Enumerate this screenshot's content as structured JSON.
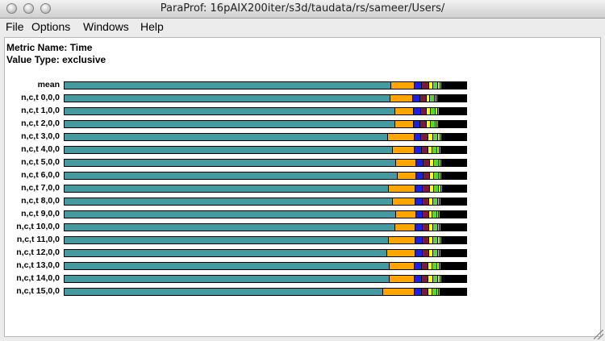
{
  "window": {
    "title": "ParaProf: 16pAIX200iter/s3d/taudata/rs/sameer/Users/"
  },
  "menu": [
    "File",
    "Options",
    "Windows",
    "Help"
  ],
  "header": {
    "metric": "Metric Name: Time",
    "value_type": "Value Type: exclusive"
  },
  "colors": {
    "teal": "#4a97a1",
    "orange": "#ffa500",
    "blue": "#1c22d8",
    "maroon": "#7a1b36",
    "yellow": "#ffff00",
    "green": "#5ad43a",
    "lime": "#b8ff00",
    "gray": "#9a9a9a",
    "black": "#000000"
  },
  "chart_data": {
    "type": "bar",
    "stacked": true,
    "orientation": "horizontal",
    "segment_colors": [
      "#4a97a1",
      "#ffa500",
      "#1c22d8",
      "#7a1b36",
      "#ffff00",
      "#5ad43a",
      "#b8ff00",
      "#9a9a9a",
      "#000000"
    ],
    "categories": [
      "mean",
      "n,c,t 0,0,0",
      "n,c,t 1,0,0",
      "n,c,t 2,0,0",
      "n,c,t 3,0,0",
      "n,c,t 4,0,0",
      "n,c,t 5,0,0",
      "n,c,t 6,0,0",
      "n,c,t 7,0,0",
      "n,c,t 8,0,0",
      "n,c,t 9,0,0",
      "n,c,t 10,0,0",
      "n,c,t 11,0,0",
      "n,c,t 12,0,0",
      "n,c,t 13,0,0",
      "n,c,t 14,0,0",
      "n,c,t 15,0,0"
    ],
    "rows": [
      [
        0.814,
        0.058,
        0.018,
        0.018,
        0.01,
        0.012,
        0.006,
        0.004,
        0.06
      ],
      [
        0.812,
        0.056,
        0.018,
        0.016,
        0.008,
        0.012,
        0.004,
        0.004,
        0.07
      ],
      [
        0.824,
        0.046,
        0.018,
        0.014,
        0.01,
        0.012,
        0.006,
        0.004,
        0.066
      ],
      [
        0.824,
        0.046,
        0.016,
        0.016,
        0.01,
        0.012,
        0.004,
        0.004,
        0.068
      ],
      [
        0.806,
        0.066,
        0.016,
        0.018,
        0.012,
        0.012,
        0.006,
        0.004,
        0.06
      ],
      [
        0.818,
        0.054,
        0.018,
        0.016,
        0.01,
        0.012,
        0.006,
        0.004,
        0.062
      ],
      [
        0.826,
        0.05,
        0.018,
        0.016,
        0.01,
        0.012,
        0.004,
        0.004,
        0.06
      ],
      [
        0.83,
        0.046,
        0.018,
        0.016,
        0.01,
        0.012,
        0.004,
        0.004,
        0.06
      ],
      [
        0.808,
        0.066,
        0.018,
        0.018,
        0.01,
        0.012,
        0.006,
        0.004,
        0.058
      ],
      [
        0.818,
        0.056,
        0.018,
        0.016,
        0.01,
        0.012,
        0.004,
        0.004,
        0.062
      ],
      [
        0.826,
        0.05,
        0.016,
        0.016,
        0.008,
        0.012,
        0.004,
        0.004,
        0.064
      ],
      [
        0.824,
        0.05,
        0.018,
        0.016,
        0.01,
        0.012,
        0.004,
        0.004,
        0.062
      ],
      [
        0.808,
        0.066,
        0.018,
        0.016,
        0.01,
        0.012,
        0.006,
        0.004,
        0.06
      ],
      [
        0.804,
        0.07,
        0.018,
        0.016,
        0.01,
        0.012,
        0.004,
        0.004,
        0.062
      ],
      [
        0.81,
        0.062,
        0.018,
        0.016,
        0.01,
        0.012,
        0.006,
        0.004,
        0.062
      ],
      [
        0.81,
        0.062,
        0.018,
        0.016,
        0.012,
        0.012,
        0.006,
        0.004,
        0.06
      ],
      [
        0.794,
        0.078,
        0.018,
        0.016,
        0.01,
        0.012,
        0.004,
        0.004,
        0.064
      ]
    ]
  }
}
